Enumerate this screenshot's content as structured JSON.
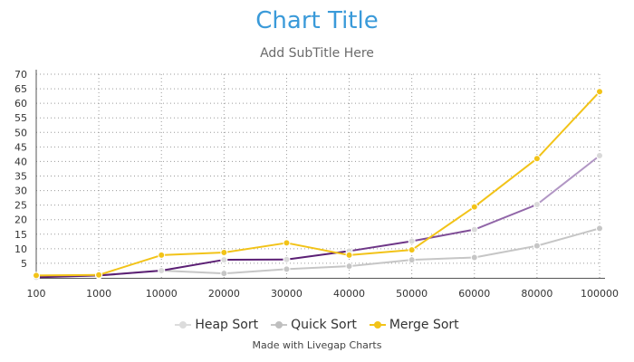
{
  "chart_data": {
    "type": "line",
    "title": "Chart Title",
    "subtitle": "Add SubTitle Here",
    "xlabel": "",
    "ylabel": "",
    "categories": [
      "100",
      "1000",
      "10000",
      "20000",
      "30000",
      "40000",
      "50000",
      "60000",
      "80000",
      "100000"
    ],
    "ylim": [
      0,
      70
    ],
    "yticks": [
      5,
      10,
      15,
      20,
      25,
      30,
      35,
      40,
      45,
      50,
      55,
      60,
      65,
      70
    ],
    "grid": true,
    "legend_position": "bottom",
    "series": [
      {
        "name": "Heap Sort",
        "values": [
          0.2,
          0.8,
          2.5,
          6.2,
          6.3,
          9.2,
          12.6,
          16.6,
          25.2,
          42.0
        ],
        "line_colors": [
          "#5b1f74",
          "#5b1f74",
          "#5b1f74",
          "#5b1f74",
          "#5b1f74",
          "#6e3687",
          "#7f4d96",
          "#9166a8",
          "#b196c4"
        ],
        "marker_color": "#d9d9d9"
      },
      {
        "name": "Quick Sort",
        "values": [
          0.3,
          0.8,
          2.5,
          1.5,
          3.0,
          4.0,
          6.2,
          7.0,
          11.0,
          17.0
        ],
        "line_color": "#c6c6c6",
        "marker_color": "#c6c6c6"
      },
      {
        "name": "Merge Sort",
        "values": [
          0.8,
          1.0,
          7.8,
          8.7,
          12.0,
          7.8,
          9.6,
          24.4,
          41.0,
          64.0
        ],
        "line_color": "#f2c318",
        "marker_color": "#f2c318"
      }
    ]
  },
  "legend": [
    {
      "label": "Heap Sort",
      "line_color": "#dcdcdc",
      "dot_color": "#dcdcdc"
    },
    {
      "label": "Quick Sort",
      "line_color": "#c6c6c6",
      "dot_color": "#bfbfbf"
    },
    {
      "label": "Merge Sort",
      "line_color": "#f2c318",
      "dot_color": "#f2c318"
    }
  ],
  "credit": "Made with Livegap Charts"
}
